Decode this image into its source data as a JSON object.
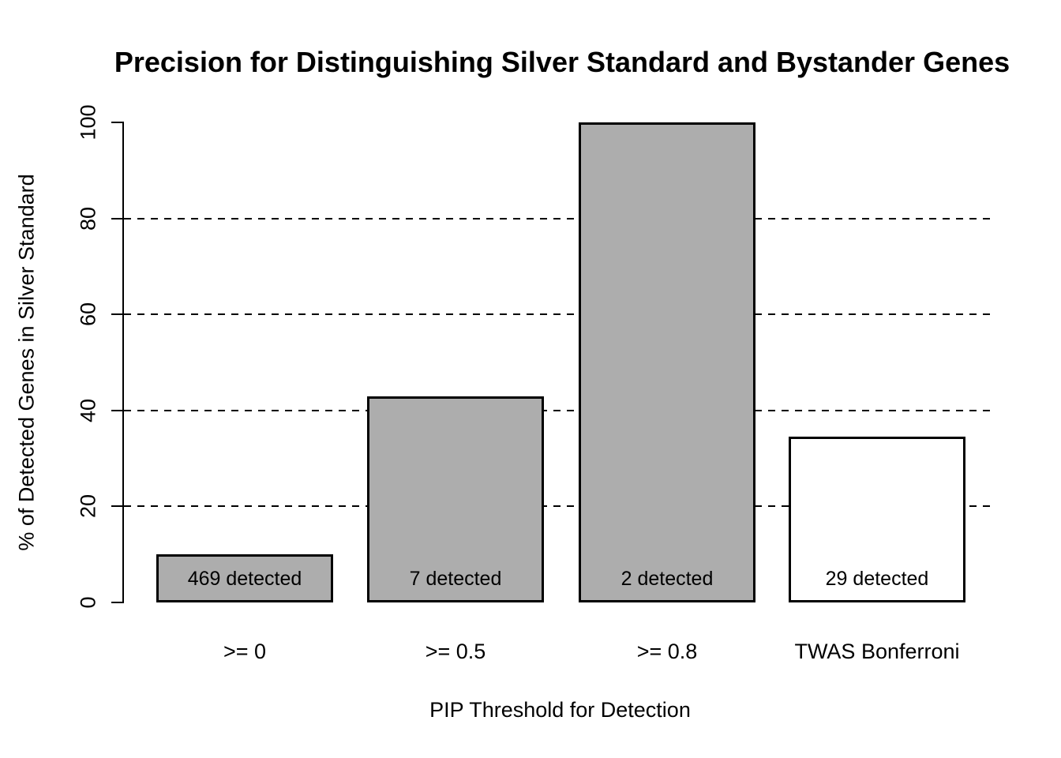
{
  "chart_data": {
    "type": "bar",
    "title": "Precision for Distinguishing Silver Standard and Bystander Genes",
    "xlabel": "PIP Threshold for Detection",
    "ylabel": "% of Detected Genes in Silver Standard",
    "categories": [
      ">= 0",
      ">= 0.5",
      ">= 0.8",
      "TWAS Bonferroni"
    ],
    "values": [
      10,
      42.9,
      100,
      34.5
    ],
    "bar_labels": [
      "469 detected",
      "7 detected",
      "2 detected",
      "29 detected"
    ],
    "bar_fill_colors": [
      "#adadad",
      "#adadad",
      "#adadad",
      "#ffffff"
    ],
    "bar_border_color": "#000000",
    "ylim": [
      0,
      100
    ],
    "yticks": [
      "0",
      "20",
      "40",
      "60",
      "80",
      "100"
    ],
    "gridline_values": [
      20,
      40,
      60,
      80
    ],
    "grid_style": "dashed",
    "legend": "none",
    "background_color": "#ffffff",
    "text_color": "#000000"
  }
}
